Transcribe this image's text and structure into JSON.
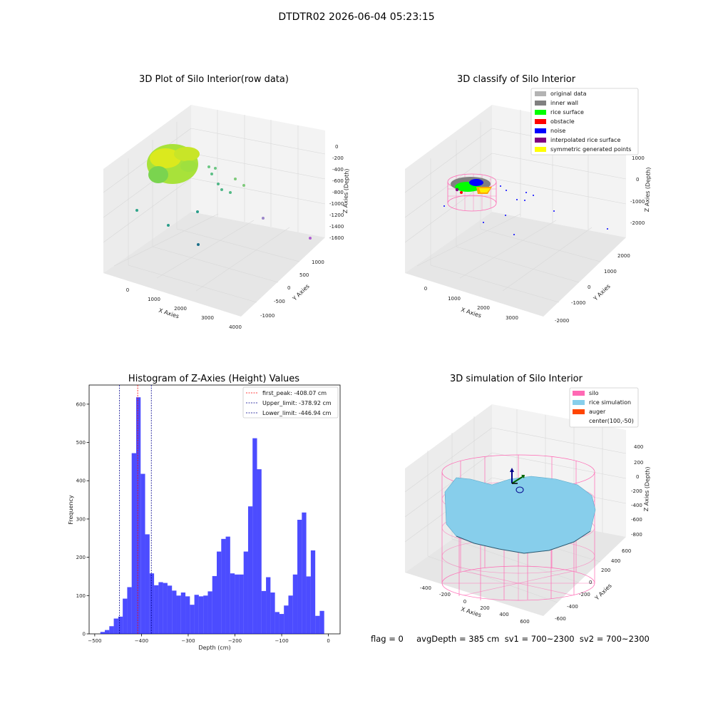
{
  "suptitle": "DTDTR02 2026-06-04 05:23:15",
  "panels": {
    "raw": {
      "title": "3D Plot of Silo Interior(row data)",
      "xlabel": "X Axies",
      "ylabel": "Y Axies",
      "zlabel": "Z Axies (Depth)",
      "xticks": [
        "0",
        "1000",
        "2000",
        "3000",
        "4000"
      ],
      "yticks": [
        "-1000",
        "-500",
        "0",
        "500",
        "1000"
      ],
      "zticks": [
        "0",
        "-200",
        "-400",
        "-600",
        "-800",
        "-1000",
        "-1200",
        "-1400",
        "-1600"
      ]
    },
    "classify": {
      "title": "3D classify of Silo Interior",
      "xlabel": "X Axies",
      "ylabel": "Y Axies",
      "zlabel": "Z Axies (Depth)",
      "xticks": [
        "0",
        "1000",
        "2000",
        "3000"
      ],
      "yticks": [
        "-2000",
        "-1000",
        "0",
        "1000",
        "2000"
      ],
      "zticks": [
        "1000",
        "0",
        "-1000",
        "-2000"
      ],
      "legend": [
        {
          "label": "original data",
          "color": "#b3b3b3"
        },
        {
          "label": "inner wall",
          "color": "#808080"
        },
        {
          "label": "rice surface",
          "color": "#00ff00"
        },
        {
          "label": "obstacle",
          "color": "#ff0000"
        },
        {
          "label": "noise",
          "color": "#0000ff"
        },
        {
          "label": "interpolated rice surface",
          "color": "#800080"
        },
        {
          "label": "symmetric generated points",
          "color": "#ffff00"
        }
      ]
    },
    "simulation": {
      "title": "3D simulation of Silo Interior",
      "xlabel": "X Axies",
      "ylabel": "Y Axies",
      "zlabel": "Z Axies (Depth)",
      "xticks": [
        "-400",
        "-200",
        "0",
        "200",
        "400",
        "600"
      ],
      "yticks": [
        "-600",
        "-400",
        "-200",
        "0",
        "200",
        "400",
        "600"
      ],
      "zticks": [
        "400",
        "200",
        "0",
        "-200",
        "-400",
        "-600",
        "-800"
      ],
      "legend": [
        {
          "label": "silo",
          "color": "#ff69b4"
        },
        {
          "label": "rice simulation",
          "color": "#87ceeb"
        },
        {
          "label": "auger",
          "color": "#ff4500"
        },
        {
          "label": "center(100,-50)",
          "color": ""
        }
      ]
    }
  },
  "footer": "flag = 0     avgDepth = 385 cm  sv1 = 700~2300  sv2 = 700~2300",
  "chart_data": {
    "type": "bar",
    "title": "Histogram of Z-Axies (Height) Values",
    "xlabel": "Depth (cm)",
    "ylabel": "Frequency",
    "bar_color": "#0000ff",
    "xlim": [
      -512,
      25
    ],
    "ylim": [
      0,
      650
    ],
    "xticks": [
      -500,
      -400,
      -300,
      -200,
      -100,
      0
    ],
    "yticks": [
      0,
      100,
      200,
      300,
      400,
      500,
      600
    ],
    "bin_start": -488,
    "bin_width": 9.58,
    "values": [
      5,
      10,
      20,
      40,
      45,
      92,
      122,
      472,
      618,
      418,
      260,
      158,
      127,
      135,
      133,
      126,
      113,
      100,
      108,
      98,
      76,
      102,
      98,
      100,
      111,
      151,
      215,
      248,
      254,
      158,
      155,
      155,
      215,
      333,
      511,
      430,
      112,
      148,
      108,
      57,
      52,
      74,
      100,
      155,
      298,
      317,
      150,
      218,
      47,
      60
    ],
    "vlines": [
      {
        "label": "first_peak: -408.07 cm",
        "x": -408.07,
        "color": "#ff0000"
      },
      {
        "label": "Upper_limit: -378.92 cm",
        "x": -378.92,
        "color": "#00008b"
      },
      {
        "label": "Lower_limit: -446.94 cm",
        "x": -446.94,
        "color": "#00008b"
      }
    ]
  }
}
